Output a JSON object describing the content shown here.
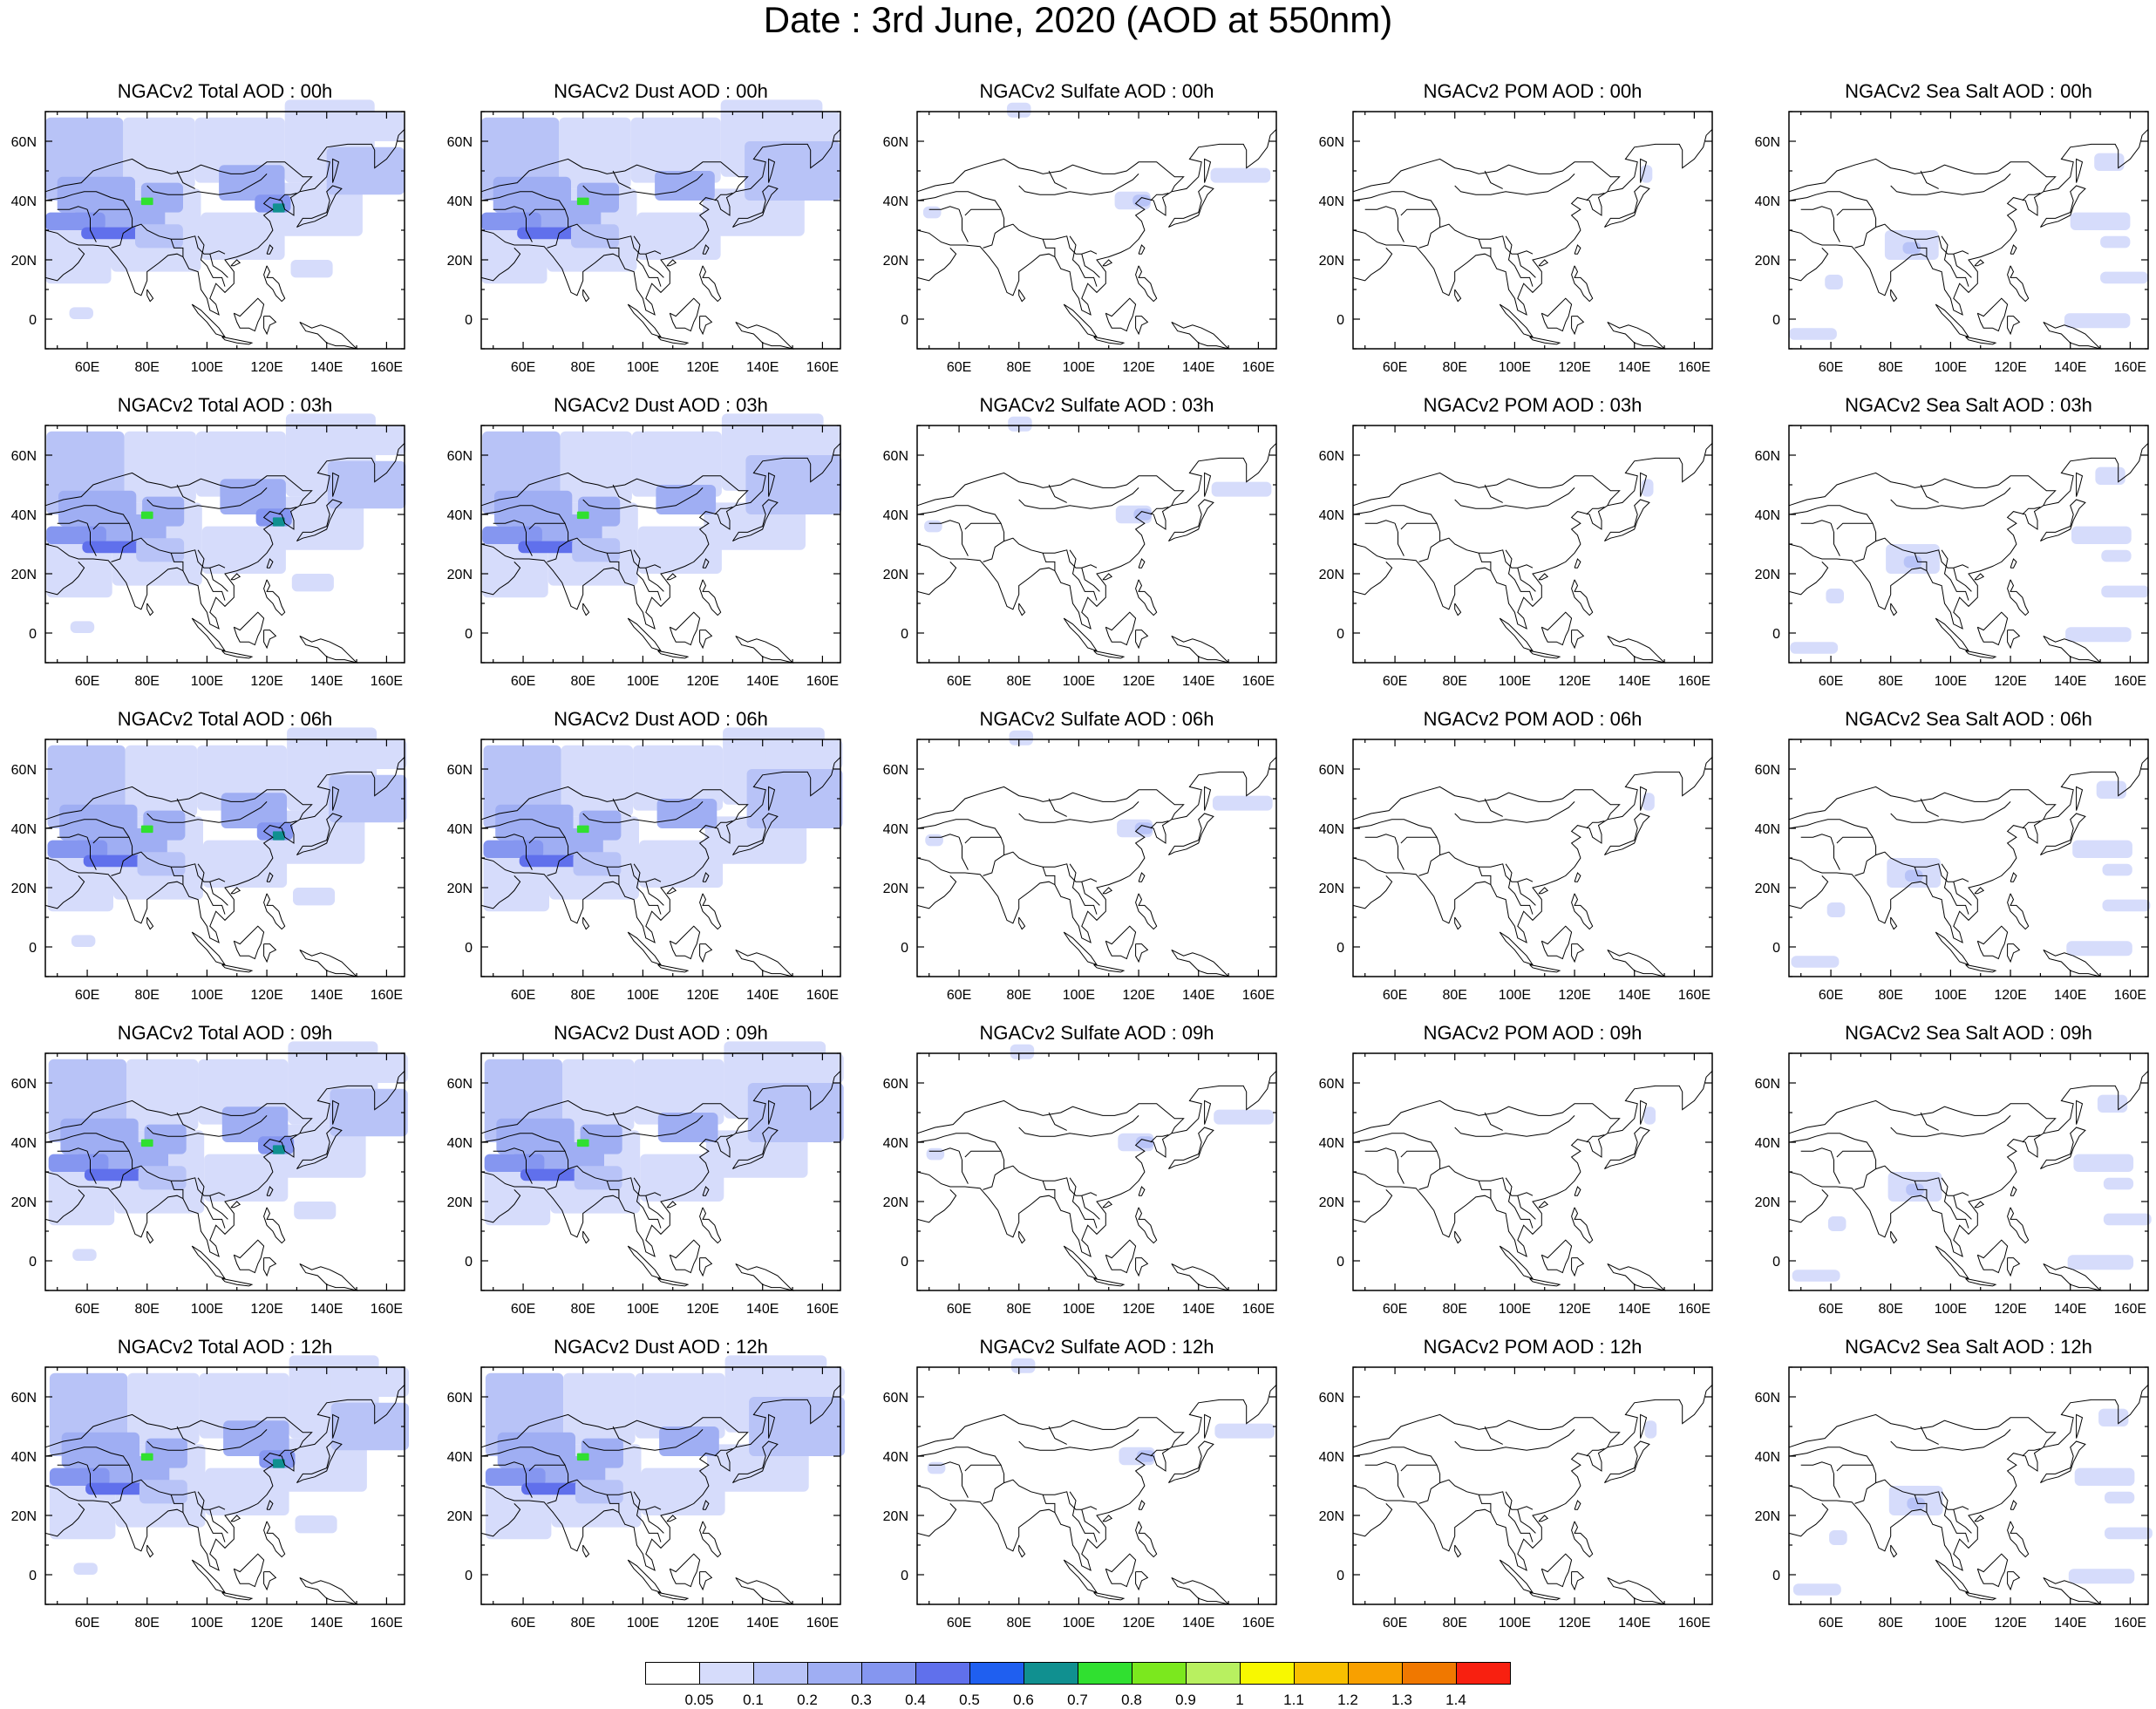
{
  "title": "Date : 3rd June, 2020 (AOD at 550nm)",
  "panels": [
    [
      "NGACv2 Total AOD : 00h",
      "NGACv2 Dust AOD : 00h",
      "NGACv2 Sulfate AOD : 00h",
      "NGACv2 POM AOD : 00h",
      "NGACv2 Sea Salt AOD : 00h"
    ],
    [
      "NGACv2 Total AOD : 03h",
      "NGACv2 Dust AOD : 03h",
      "NGACv2 Sulfate AOD : 03h",
      "NGACv2 POM AOD : 03h",
      "NGACv2 Sea Salt AOD : 03h"
    ],
    [
      "NGACv2 Total AOD : 06h",
      "NGACv2 Dust AOD : 06h",
      "NGACv2 Sulfate AOD : 06h",
      "NGACv2 POM AOD : 06h",
      "NGACv2 Sea Salt AOD : 06h"
    ],
    [
      "NGACv2 Total AOD : 09h",
      "NGACv2 Dust AOD : 09h",
      "NGACv2 Sulfate AOD : 09h",
      "NGACv2 POM AOD : 09h",
      "NGACv2 Sea Salt  AOD : 09h"
    ],
    [
      "NGACv2 Total AOD  : 12h",
      "NGACv2 Dust AOD : 12h",
      "NGACv2 Sulfate AOD : 12h",
      "NGACv2 POM  AOD : 12h",
      "NGACv2 Sea Salt  AOD : 12h"
    ]
  ],
  "x_ticks": [
    "60E",
    "80E",
    "100E",
    "120E",
    "140E",
    "160E"
  ],
  "y_ticks": [
    "60N",
    "40N",
    "20N",
    "0"
  ],
  "colorbar": {
    "labels": [
      "0.05",
      "0.1",
      "0.2",
      "0.3",
      "0.4",
      "0.5",
      "0.6",
      "0.7",
      "0.8",
      "0.9",
      "1",
      "1.1",
      "1.2",
      "1.3",
      "1.4"
    ],
    "colors": [
      "#ffffff",
      "#d6dcfb",
      "#b8c3f7",
      "#9faef3",
      "#8596f0",
      "#6070ec",
      "#1f5ff0",
      "#109090",
      "#30e030",
      "#7be81e",
      "#b8f060",
      "#f8f800",
      "#f8c000",
      "#f8a000",
      "#f07800",
      "#f82010"
    ]
  }
}
